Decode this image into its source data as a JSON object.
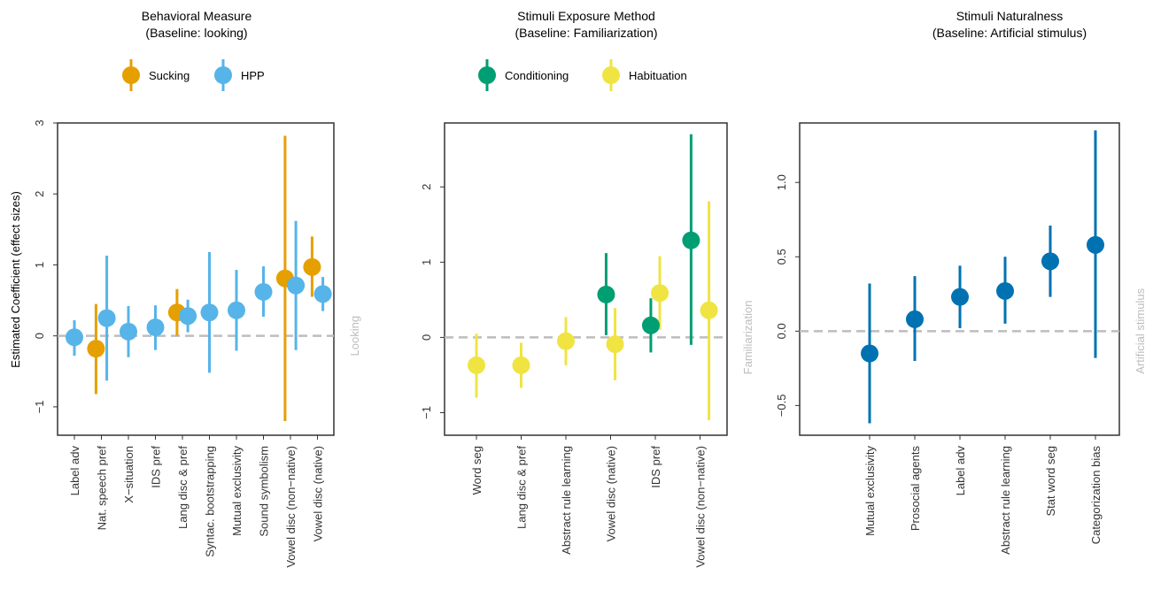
{
  "y_axis_label": "Estimated Coefficient (effect sizes)",
  "colors": {
    "frame": "#333333",
    "baseline": "#bdbdbd",
    "baseline_label": "#bdbdbd",
    "text": "#000000",
    "tick_label": "#333333"
  },
  "chart_data": [
    {
      "type": "scatter",
      "title": "Behavioral Measure",
      "subtitle": "(Baseline: looking)",
      "baseline_label": "Looking",
      "ylim": [
        -1.4,
        3.0
      ],
      "y_ticks": [
        -1,
        0,
        1,
        2,
        3
      ],
      "y_tick_labels": [
        "−1",
        "0",
        "1",
        "2",
        "3"
      ],
      "categories": [
        "Label adv",
        "Nat. speech pref",
        "X−situation",
        "IDS pref",
        "Lang disc & pref",
        "Syntac. bootstrapping",
        "Mutual exclusivity",
        "Sound symbolism",
        "Vowel disc (non−native)",
        "Vowel disc (native)"
      ],
      "series": [
        {
          "name": "Sucking",
          "color": "#E69F00",
          "points": [
            {
              "category_index": 1,
              "offset": -0.2,
              "y": -0.18,
              "lo": -0.82,
              "hi": 0.45
            },
            {
              "category_index": 4,
              "offset": -0.2,
              "y": 0.33,
              "lo": 0.0,
              "hi": 0.66
            },
            {
              "category_index": 8,
              "offset": -0.2,
              "y": 0.81,
              "lo": -1.2,
              "hi": 2.82
            },
            {
              "category_index": 9,
              "offset": -0.2,
              "y": 0.97,
              "lo": 0.55,
              "hi": 1.4
            }
          ]
        },
        {
          "name": "HPP",
          "color": "#56B4E9",
          "points": [
            {
              "category_index": 0,
              "offset": 0.0,
              "y": -0.02,
              "lo": -0.28,
              "hi": 0.22
            },
            {
              "category_index": 1,
              "offset": 0.2,
              "y": 0.25,
              "lo": -0.63,
              "hi": 1.13
            },
            {
              "category_index": 2,
              "offset": 0.0,
              "y": 0.06,
              "lo": -0.3,
              "hi": 0.42
            },
            {
              "category_index": 3,
              "offset": 0.0,
              "y": 0.12,
              "lo": -0.2,
              "hi": 0.43
            },
            {
              "category_index": 4,
              "offset": 0.2,
              "y": 0.28,
              "lo": 0.05,
              "hi": 0.51
            },
            {
              "category_index": 5,
              "offset": 0.0,
              "y": 0.33,
              "lo": -0.52,
              "hi": 1.18
            },
            {
              "category_index": 6,
              "offset": 0.0,
              "y": 0.36,
              "lo": -0.21,
              "hi": 0.93
            },
            {
              "category_index": 7,
              "offset": 0.0,
              "y": 0.62,
              "lo": 0.27,
              "hi": 0.98
            },
            {
              "category_index": 8,
              "offset": 0.2,
              "y": 0.71,
              "lo": -0.2,
              "hi": 1.62
            },
            {
              "category_index": 9,
              "offset": 0.2,
              "y": 0.59,
              "lo": 0.35,
              "hi": 0.83
            }
          ]
        }
      ]
    },
    {
      "type": "scatter",
      "title": "Stimuli Exposure Method",
      "subtitle": "(Baseline: Familiarization)",
      "baseline_label": "Familiarization",
      "ylim": [
        -1.3,
        2.85
      ],
      "y_ticks": [
        -1,
        0,
        1,
        2
      ],
      "y_tick_labels": [
        "−1",
        "0",
        "1",
        "2"
      ],
      "categories": [
        "Word seg",
        "Lang disc & pref",
        "Abstract rule learning",
        "Vowel disc (native)",
        "IDS pref",
        "Vowel disc (non−native)"
      ],
      "series": [
        {
          "name": "Conditioning",
          "color": "#009E73",
          "points": [
            {
              "category_index": 3,
              "offset": -0.1,
              "y": 0.57,
              "lo": 0.03,
              "hi": 1.12
            },
            {
              "category_index": 4,
              "offset": -0.1,
              "y": 0.16,
              "lo": -0.2,
              "hi": 0.52
            },
            {
              "category_index": 5,
              "offset": -0.2,
              "y": 1.29,
              "lo": -0.1,
              "hi": 2.7
            }
          ]
        },
        {
          "name": "Habituation",
          "color": "#F0E442",
          "points": [
            {
              "category_index": 0,
              "offset": 0.0,
              "y": -0.37,
              "lo": -0.8,
              "hi": 0.05
            },
            {
              "category_index": 1,
              "offset": 0.0,
              "y": -0.37,
              "lo": -0.67,
              "hi": -0.07
            },
            {
              "category_index": 2,
              "offset": 0.0,
              "y": -0.05,
              "lo": -0.37,
              "hi": 0.27
            },
            {
              "category_index": 3,
              "offset": 0.1,
              "y": -0.09,
              "lo": -0.57,
              "hi": 0.39
            },
            {
              "category_index": 4,
              "offset": 0.1,
              "y": 0.59,
              "lo": 0.1,
              "hi": 1.08
            },
            {
              "category_index": 5,
              "offset": 0.2,
              "y": 0.36,
              "lo": -1.1,
              "hi": 1.81
            }
          ]
        }
      ]
    },
    {
      "type": "scatter",
      "title": "Stimuli Naturalness",
      "subtitle": "(Baseline: Artificial stimulus)",
      "baseline_label": "Artificial stimulus",
      "ylim": [
        -0.7,
        1.4
      ],
      "y_ticks": [
        -0.5,
        0.0,
        0.5,
        1.0
      ],
      "y_tick_labels": [
        "−0.5",
        "0.0",
        "0.5",
        "1.0"
      ],
      "categories": [
        "Mutual exclusivity",
        "Prosocial agents",
        "Label adv",
        "Abstract rule learning",
        "Stat word seg",
        "Categorization bias"
      ],
      "series": [
        {
          "name": "",
          "color": "#0072B2",
          "points": [
            {
              "category_index": 0,
              "offset": 0.0,
              "y": -0.15,
              "lo": -0.62,
              "hi": 0.32
            },
            {
              "category_index": 1,
              "offset": 0.0,
              "y": 0.08,
              "lo": -0.2,
              "hi": 0.37
            },
            {
              "category_index": 2,
              "offset": 0.0,
              "y": 0.23,
              "lo": 0.02,
              "hi": 0.44
            },
            {
              "category_index": 3,
              "offset": 0.0,
              "y": 0.27,
              "lo": 0.05,
              "hi": 0.5
            },
            {
              "category_index": 4,
              "offset": 0.0,
              "y": 0.47,
              "lo": 0.23,
              "hi": 0.71
            },
            {
              "category_index": 5,
              "offset": 0.0,
              "y": 0.58,
              "lo": -0.18,
              "hi": 1.35
            }
          ]
        }
      ]
    }
  ]
}
